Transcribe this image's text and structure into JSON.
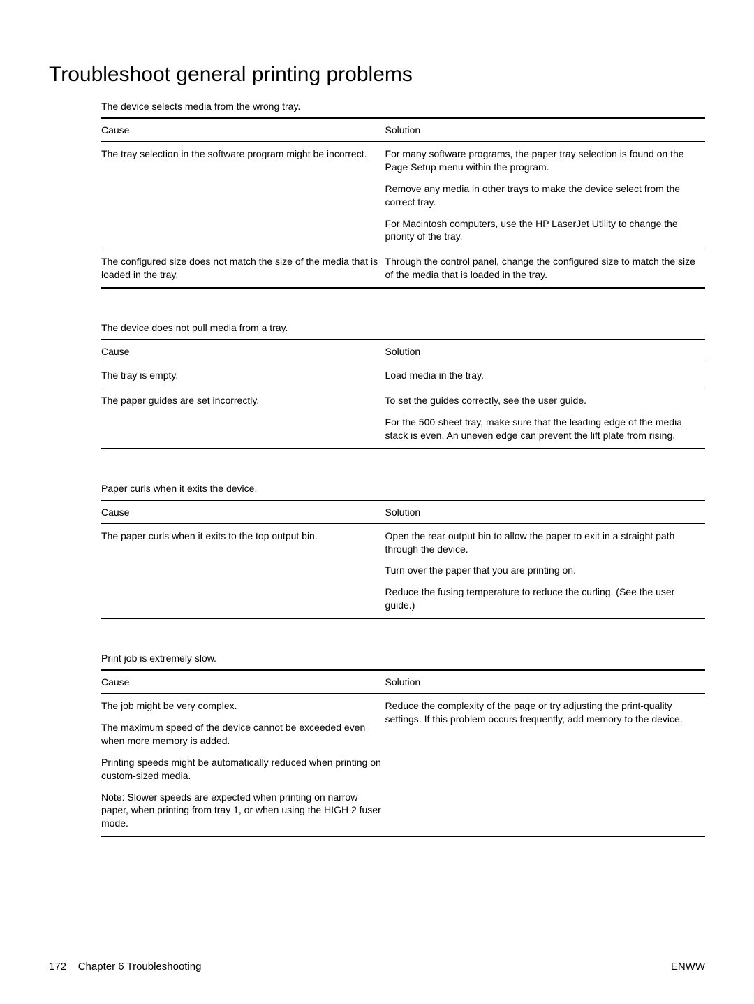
{
  "title": "Troubleshoot general printing problems",
  "headers": {
    "cause": "Cause",
    "solution": "Solution"
  },
  "sections": [
    {
      "title": "The device selects media from the wrong tray.",
      "rows": [
        {
          "cause": [
            "The tray selection in the software program might be incorrect."
          ],
          "solution": [
            "For many software programs, the paper tray selection is found on the Page Setup  menu within the program.",
            "Remove any media in other trays to make the device select from the correct tray.",
            "For Macintosh computers, use the HP LaserJet Utility to change the priority of the tray."
          ]
        },
        {
          "cause": [
            "The configured size does not match the size of the media that is loaded in the tray."
          ],
          "solution": [
            "Through the control panel, change the configured size to match the size of the media that is loaded in the tray."
          ]
        }
      ]
    },
    {
      "title": "The device does not pull media from a tray.",
      "rows": [
        {
          "cause": [
            "The tray is empty."
          ],
          "solution": [
            "Load media in the tray."
          ]
        },
        {
          "cause": [
            "The paper guides are set incorrectly."
          ],
          "solution": [
            "To set the guides correctly, see the user guide.",
            "For the 500-sheet tray, make sure that the leading edge of the media stack is even. An uneven edge can prevent the lift plate from rising."
          ]
        }
      ]
    },
    {
      "title": "Paper curls when it exits the device.",
      "rows": [
        {
          "cause": [
            "The paper curls when it exits to the top output bin."
          ],
          "solution": [
            "Open the rear output bin to allow the paper to exit in a straight path through the device.",
            "Turn over the paper that you are printing on.",
            "Reduce the fusing temperature to reduce the curling. (See the user guide.)"
          ]
        }
      ]
    },
    {
      "title": "Print job is extremely slow.",
      "rows": [
        {
          "cause": [
            "The job might be very complex.",
            "The maximum speed of the device cannot be exceeded even when more memory is added.",
            "Printing speeds might be automatically reduced when printing on custom-sized media.",
            "Note:  Slower speeds are expected when printing on narrow paper, when printing from tray 1, or when using the HIGH 2 fuser mode."
          ],
          "solution": [
            "Reduce the complexity of the page or try adjusting the print-quality settings. If this problem occurs frequently, add memory to the device."
          ]
        }
      ]
    }
  ],
  "footer": {
    "left_page": "172",
    "left_chapter": "Chapter 6   Troubleshooting",
    "right": "ENWW"
  }
}
